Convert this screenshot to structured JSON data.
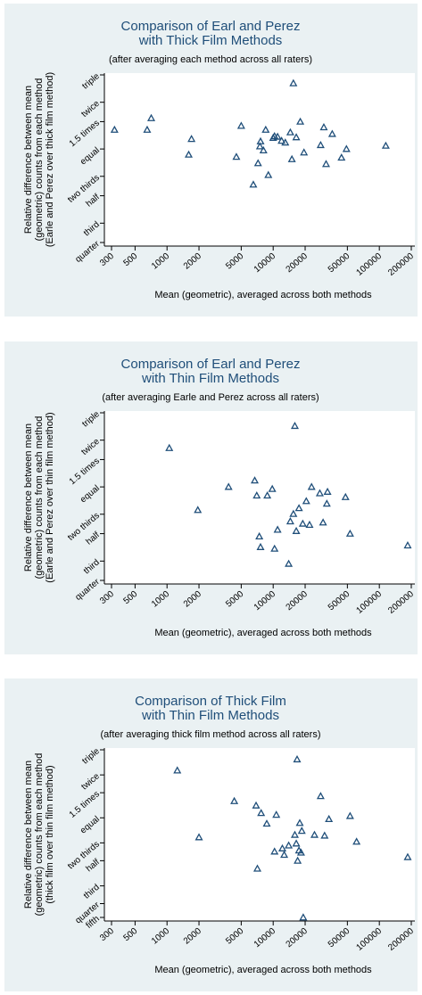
{
  "chart_data": [
    {
      "type": "scatter",
      "title": "Comparison of Earl and Perez",
      "title2": "with Thick Film Methods",
      "subtitle": "(after averaging each method across all raters)",
      "ylabel": [
        "Relative difference between mean",
        "(geometric) counts from each method",
        "(Earle and Perez over thick film method)"
      ],
      "xlabel": "Mean (geometric), averaged across both methods",
      "xscale": "log",
      "yscale": "log",
      "xlim": [
        300,
        200000
      ],
      "ylim": [
        0.25,
        3
      ],
      "xticks": [
        300,
        500,
        1000,
        2000,
        5000,
        10000,
        20000,
        50000,
        100000,
        200000
      ],
      "yticks": [
        {
          "v": 3,
          "label": "triple"
        },
        {
          "v": 2,
          "label": "twice"
        },
        {
          "v": 1.5,
          "label": "1.5 times"
        },
        {
          "v": 1,
          "label": "equal"
        },
        {
          "v": 0.667,
          "label": "two thirds"
        },
        {
          "v": 0.5,
          "label": "half"
        },
        {
          "v": 0.333,
          "label": "third"
        },
        {
          "v": 0.25,
          "label": "quarter"
        }
      ],
      "marker": "triangle",
      "grid": false,
      "points": [
        [
          320,
          1.33
        ],
        [
          650,
          1.33
        ],
        [
          710,
          1.58
        ],
        [
          1600,
          0.92
        ],
        [
          1700,
          1.16
        ],
        [
          4500,
          0.89
        ],
        [
          5000,
          1.41
        ],
        [
          6500,
          0.59
        ],
        [
          7200,
          0.81
        ],
        [
          7500,
          1.04
        ],
        [
          7600,
          1.12
        ],
        [
          8100,
          0.98
        ],
        [
          8500,
          1.33
        ],
        [
          9000,
          0.68
        ],
        [
          10000,
          1.18
        ],
        [
          10300,
          1.21
        ],
        [
          11000,
          1.2
        ],
        [
          12000,
          1.13
        ],
        [
          13000,
          1.1
        ],
        [
          14500,
          1.28
        ],
        [
          15000,
          0.86
        ],
        [
          15500,
          2.65
        ],
        [
          16500,
          1.19
        ],
        [
          18000,
          1.5
        ],
        [
          19500,
          0.95
        ],
        [
          28000,
          1.06
        ],
        [
          30000,
          1.38
        ],
        [
          31500,
          0.8
        ],
        [
          36000,
          1.25
        ],
        [
          44000,
          0.88
        ],
        [
          49000,
          1.0
        ],
        [
          115000,
          1.05
        ]
      ]
    },
    {
      "type": "scatter",
      "title": "Comparison of Earl and Perez",
      "title2": "with Thin Film Methods",
      "subtitle": "(after averaging Earle and Perez across all raters)",
      "ylabel": [
        "Relative difference between mean",
        "(geometric) counts from each method",
        "(Earle and Perez over thin film method)"
      ],
      "xlabel": "Mean (geometric), averaged across both methods",
      "xscale": "log",
      "yscale": "log",
      "xlim": [
        300,
        200000
      ],
      "ylim": [
        0.25,
        3
      ],
      "xticks": [
        300,
        500,
        1000,
        2000,
        5000,
        10000,
        20000,
        50000,
        100000,
        200000
      ],
      "yticks": [
        {
          "v": 3,
          "label": "triple"
        },
        {
          "v": 2,
          "label": "twice"
        },
        {
          "v": 1.5,
          "label": "1.5 times"
        },
        {
          "v": 1,
          "label": "equal"
        },
        {
          "v": 0.667,
          "label": "two thirds"
        },
        {
          "v": 0.5,
          "label": "half"
        },
        {
          "v": 0.333,
          "label": "third"
        },
        {
          "v": 0.25,
          "label": "quarter"
        }
      ],
      "marker": "triangle",
      "grid": false,
      "points": [
        [
          1050,
          1.78
        ],
        [
          1950,
          0.71
        ],
        [
          3800,
          1.0
        ],
        [
          6700,
          1.1
        ],
        [
          7000,
          0.88
        ],
        [
          7400,
          0.48
        ],
        [
          7600,
          0.41
        ],
        [
          8800,
          0.88
        ],
        [
          9800,
          0.97
        ],
        [
          10300,
          0.4
        ],
        [
          11000,
          0.53
        ],
        [
          14000,
          0.32
        ],
        [
          14500,
          0.6
        ],
        [
          15500,
          0.67
        ],
        [
          16000,
          2.47
        ],
        [
          16500,
          0.52
        ],
        [
          17500,
          0.73
        ],
        [
          19000,
          0.58
        ],
        [
          20500,
          0.81
        ],
        [
          22000,
          0.57
        ],
        [
          23000,
          1.0
        ],
        [
          27500,
          0.91
        ],
        [
          29500,
          0.59
        ],
        [
          32000,
          0.78
        ],
        [
          32500,
          0.93
        ],
        [
          48000,
          0.86
        ],
        [
          53000,
          0.5
        ],
        [
          185000,
          0.42
        ]
      ]
    },
    {
      "type": "scatter",
      "title": "Comparison of Thick Film",
      "title2": "with Thin Film Methods",
      "subtitle": "(after averaging thick film method across all raters)",
      "ylabel": [
        "Relative difference between mean",
        "(geometric) counts from each method",
        "(thick film over thin film method)"
      ],
      "xlabel": "Mean (geometric), averaged across both methods",
      "xscale": "log",
      "yscale": "log",
      "xlim": [
        300,
        200000
      ],
      "ylim": [
        0.2,
        3
      ],
      "xticks": [
        300,
        500,
        1000,
        2000,
        5000,
        10000,
        20000,
        50000,
        100000,
        200000
      ],
      "yticks": [
        {
          "v": 3,
          "label": "triple"
        },
        {
          "v": 2,
          "label": "twice"
        },
        {
          "v": 1.5,
          "label": "1.5 times"
        },
        {
          "v": 1,
          "label": "equal"
        },
        {
          "v": 0.667,
          "label": "two thirds"
        },
        {
          "v": 0.5,
          "label": "half"
        },
        {
          "v": 0.333,
          "label": "third"
        },
        {
          "v": 0.25,
          "label": "quarter"
        },
        {
          "v": 0.2,
          "label": "fifth"
        }
      ],
      "marker": "triangle",
      "grid": false,
      "points": [
        [
          1250,
          2.15
        ],
        [
          2000,
          0.73
        ],
        [
          4300,
          1.31
        ],
        [
          6900,
          1.22
        ],
        [
          7100,
          0.44
        ],
        [
          7700,
          1.08
        ],
        [
          8700,
          0.91
        ],
        [
          10300,
          0.58
        ],
        [
          10700,
          1.05
        ],
        [
          12200,
          0.61
        ],
        [
          12700,
          0.55
        ],
        [
          14000,
          0.64
        ],
        [
          16000,
          0.76
        ],
        [
          16500,
          0.66
        ],
        [
          16800,
          2.57
        ],
        [
          17000,
          0.5
        ],
        [
          17500,
          0.59
        ],
        [
          17800,
          0.92
        ],
        [
          18300,
          0.57
        ],
        [
          18600,
          0.81
        ],
        [
          19200,
          0.2
        ],
        [
          24500,
          0.76
        ],
        [
          28000,
          1.42
        ],
        [
          30500,
          0.75
        ],
        [
          33500,
          0.98
        ],
        [
          53000,
          1.03
        ],
        [
          61000,
          0.68
        ],
        [
          185000,
          0.53
        ]
      ]
    }
  ]
}
